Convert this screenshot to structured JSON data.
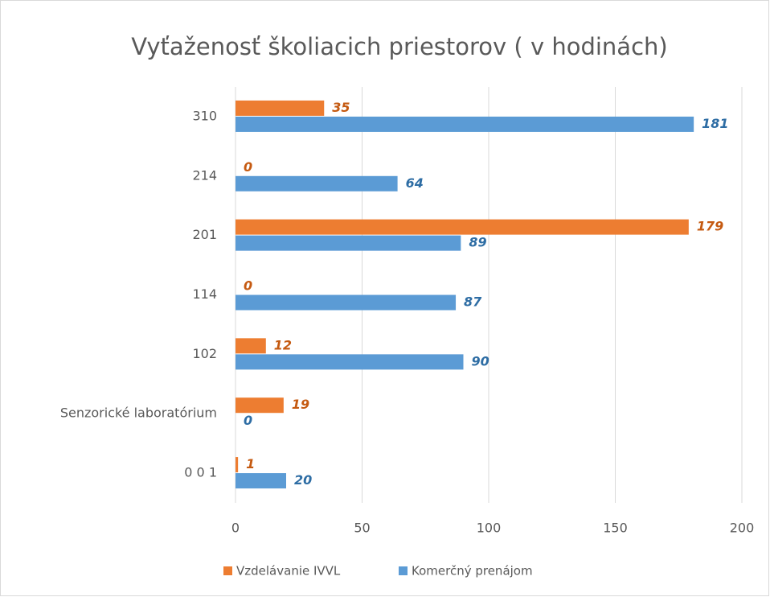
{
  "chart_data": {
    "type": "bar",
    "orientation": "horizontal",
    "title": "Vyťaženosť školiacich priestorov ( v hodinách)",
    "categories": [
      "310",
      "214",
      "201",
      "114",
      "102",
      "Senzorické laboratórium",
      "0 0 1"
    ],
    "series": [
      {
        "name": "Vzdelávanie IVVL",
        "color": "#ed7d31",
        "values": [
          35,
          0,
          179,
          0,
          12,
          19,
          1
        ]
      },
      {
        "name": "Komerčný prenájom",
        "color": "#5b9bd5",
        "values": [
          181,
          64,
          89,
          87,
          90,
          0,
          20
        ]
      }
    ],
    "xlim": [
      0,
      200
    ],
    "xticks": [
      0,
      50,
      100,
      150,
      200
    ],
    "grid": true,
    "legend": "bottom"
  }
}
